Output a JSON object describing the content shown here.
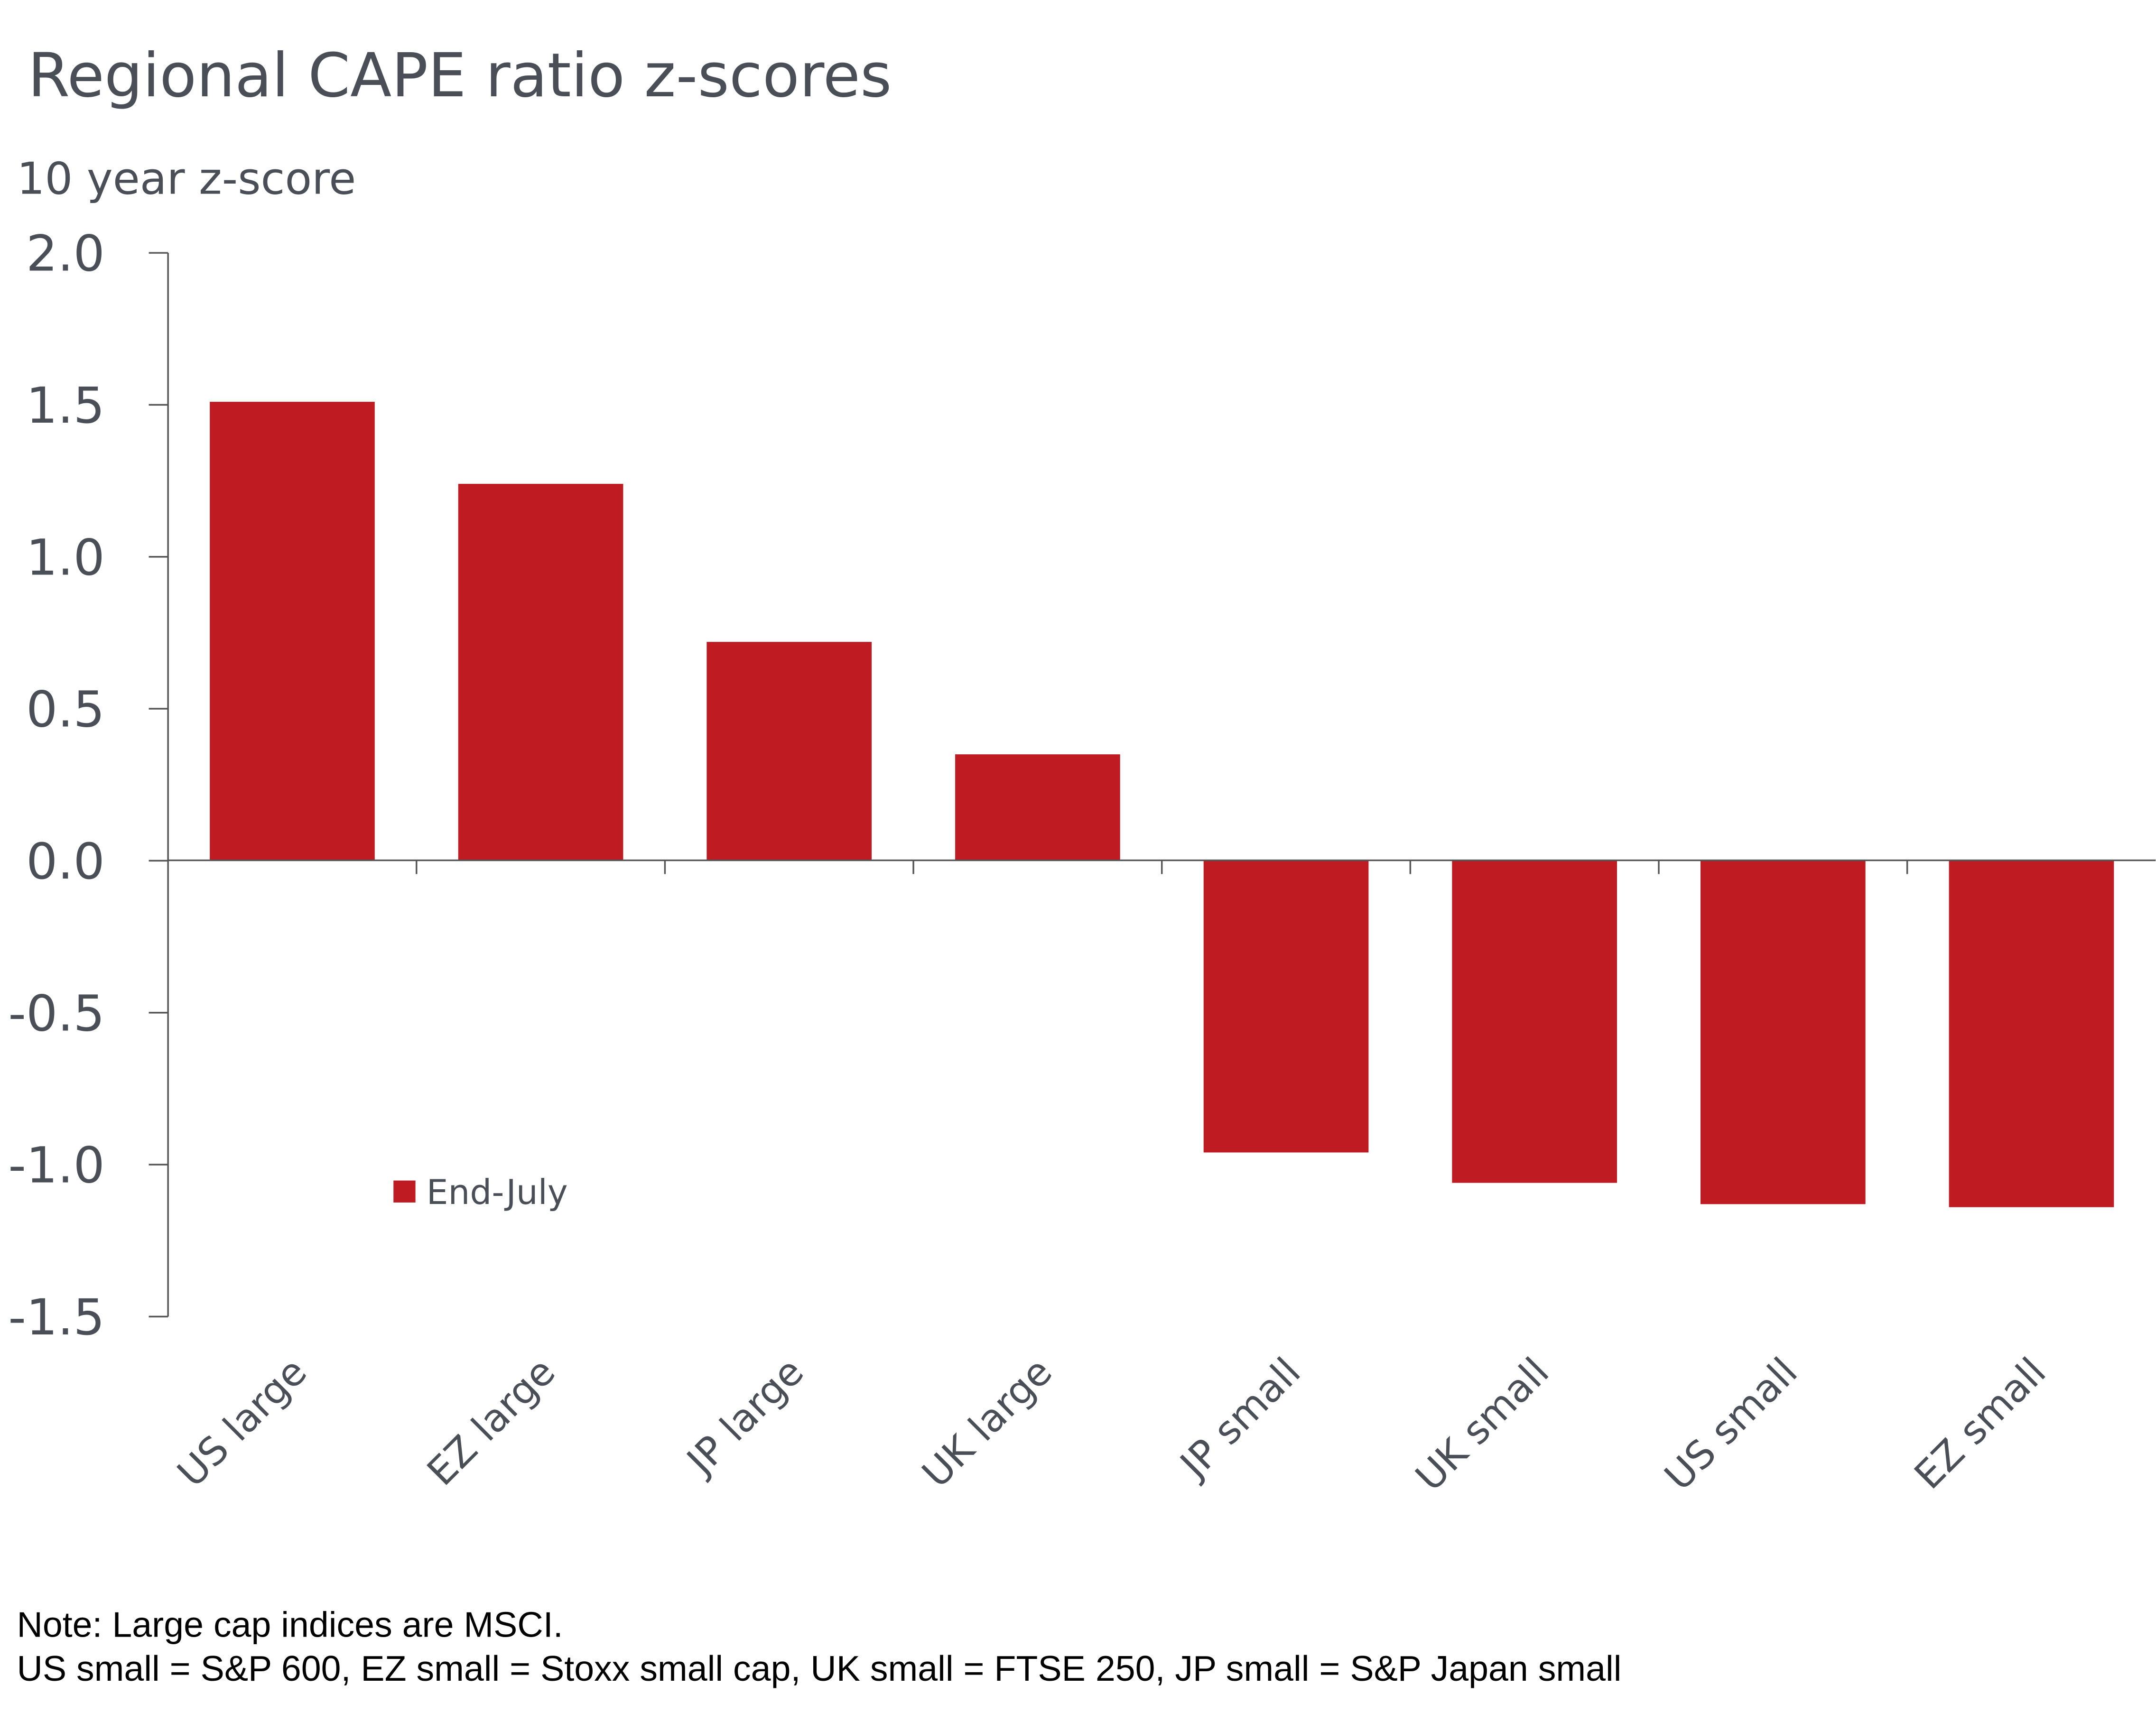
{
  "chart_data": {
    "type": "bar",
    "title": "Regional CAPE ratio z-scores",
    "ylabel": "10 year z-score",
    "xlabel": "",
    "categories": [
      "US large",
      "EZ large",
      "JP large",
      "UK large",
      "JP small",
      "UK small",
      "US small",
      "EZ small"
    ],
    "series": [
      {
        "name": "End-July",
        "values": [
          1.51,
          1.24,
          0.72,
          0.35,
          -0.96,
          -1.06,
          -1.13,
          -1.14
        ]
      }
    ],
    "ylim": [
      -1.5,
      2.0
    ],
    "yticks": [
      "2.0",
      "1.5",
      "1.0",
      "0.5",
      "0.0",
      "-0.5",
      "-1.0",
      "-1.5"
    ],
    "grid": false,
    "legend_placement": "bottom-left inside",
    "bar_color": "#be1b23",
    "notes": [
      "Note: Large cap indices are MSCI.",
      "US small = S&P 600, EZ small = Stoxx small cap, UK small = FTSE 250, JP small = S&P Japan small"
    ]
  }
}
